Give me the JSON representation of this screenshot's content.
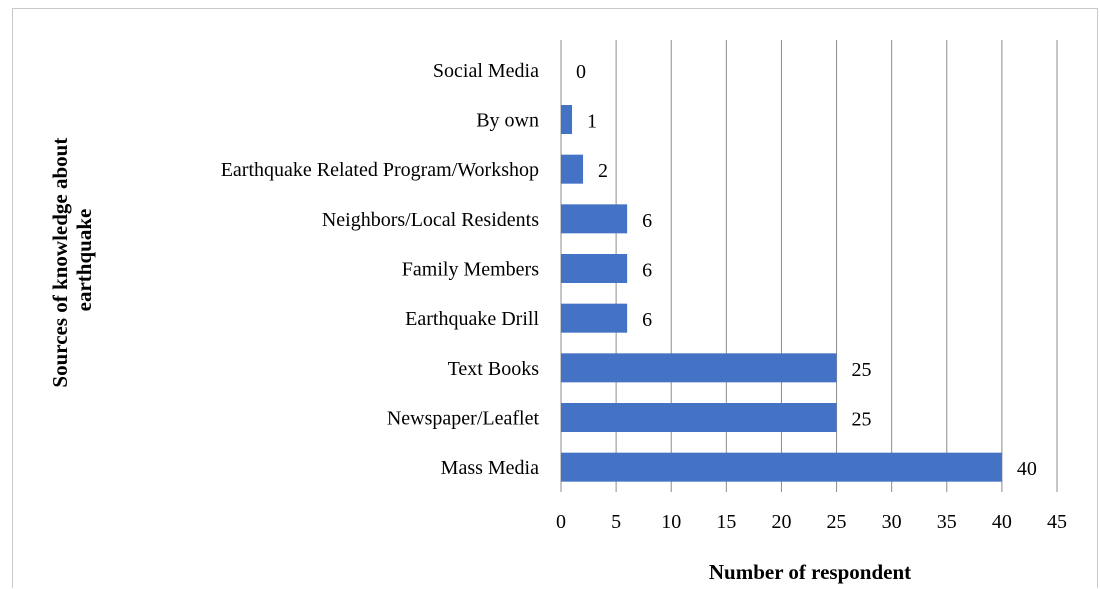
{
  "chart_data": {
    "type": "bar",
    "orientation": "horizontal",
    "categories": [
      "Social Media",
      "By own",
      "Earthquake Related Program/Workshop",
      "Neighbors/Local Residents",
      "Family Members",
      "Earthquake Drill",
      "Text Books",
      "Newspaper/Leaflet",
      "Mass Media"
    ],
    "values": [
      0,
      1,
      2,
      6,
      6,
      6,
      25,
      25,
      40
    ],
    "data_labels": [
      "0",
      "1",
      "2",
      "6",
      "6",
      "6",
      "25",
      "25",
      "40"
    ],
    "xlabel": "Number of respondent",
    "ylabel_lines": [
      "Sources of knowledge about",
      "earthquake"
    ],
    "xlim": [
      0,
      45
    ],
    "x_ticks": [
      "0",
      "5",
      "10",
      "15",
      "20",
      "25",
      "30",
      "35",
      "40",
      "45"
    ],
    "grid": "vertical",
    "legend": "none",
    "bar_color": "#4472C4",
    "grid_color": "#8c8c8c"
  }
}
